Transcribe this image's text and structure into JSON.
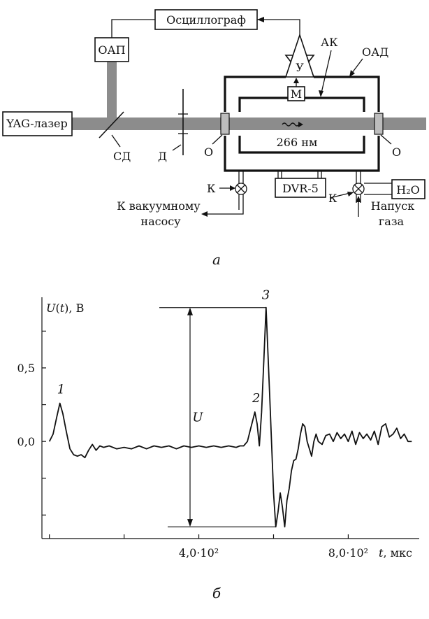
{
  "schematic": {
    "oscillograph": "Осциллограф",
    "oap": "ОАП",
    "laser": "YAG-лазер",
    "ak": "АК",
    "oad": "ОАД",
    "amplifier": "У",
    "mic": "М",
    "wavelength": "266 нм",
    "sd": "СД",
    "d": "Д",
    "o_left": "О",
    "o_right": "О",
    "k_left": "К",
    "k_right": "К",
    "dvr": "DVR-5",
    "water": "H₂O",
    "pump_line1": "К вакуумному",
    "pump_line2": "насосу",
    "gas_line1": "Напуск",
    "gas_line2": "газа",
    "caption": "а"
  },
  "graph": {
    "ylabel": "U(t), В",
    "xlabel": "t, мкс",
    "ytick_labels": [
      "0,5",
      "0,0"
    ],
    "xtick_labels": [
      "4,0·10²",
      "8,0·10²"
    ],
    "peak_labels": [
      "1",
      "2",
      "3"
    ],
    "amplitude_label": "U",
    "caption": "б"
  },
  "chart_data": {
    "type": "line",
    "title": "",
    "xlabel": "t, мкс",
    "ylabel": "U(t), В",
    "xlim": [
      -20,
      990
    ],
    "ylim": [
      -0.66,
      0.98
    ],
    "x_ticks": [
      0,
      200,
      400,
      600,
      800
    ],
    "x_tick_labels": {
      "400": "4,0·10²",
      "800": "8,0·10²"
    },
    "y_ticks": [
      -0.5,
      -0.25,
      0,
      0.25,
      0.5,
      0.75
    ],
    "y_tick_labels": {
      "0.5": "0,5",
      "0": "0,0"
    },
    "grid": false,
    "amplitude_range": [
      -0.58,
      0.91
    ],
    "series": [
      {
        "x": [
          0,
          10,
          20,
          28,
          36,
          45,
          55,
          65,
          75,
          85,
          95,
          105,
          115,
          125,
          135,
          145,
          160,
          180,
          200,
          220,
          240,
          260,
          280,
          300,
          320,
          340,
          360,
          380,
          400,
          420,
          440,
          460,
          480,
          500,
          510,
          520,
          530,
          540,
          550,
          556,
          562,
          568,
          574,
          580,
          590,
          600,
          606,
          612,
          618,
          624,
          630,
          636,
          642,
          648,
          654,
          660,
          666,
          672,
          678,
          684,
          690,
          696,
          702,
          708,
          714,
          720,
          730,
          740,
          750,
          760,
          770,
          780,
          790,
          800,
          810,
          820,
          830,
          840,
          850,
          860,
          870,
          880,
          890,
          900,
          910,
          920,
          930,
          940,
          950,
          960,
          970
        ],
        "y": [
          0.0,
          0.05,
          0.17,
          0.26,
          0.19,
          0.07,
          -0.05,
          -0.09,
          -0.1,
          -0.09,
          -0.11,
          -0.06,
          -0.02,
          -0.06,
          -0.03,
          -0.04,
          -0.03,
          -0.05,
          -0.04,
          -0.05,
          -0.03,
          -0.05,
          -0.03,
          -0.04,
          -0.03,
          -0.05,
          -0.03,
          -0.04,
          -0.03,
          -0.04,
          -0.03,
          -0.04,
          -0.03,
          -0.04,
          -0.03,
          -0.03,
          0.0,
          0.1,
          0.2,
          0.12,
          -0.03,
          0.2,
          0.55,
          0.91,
          0.3,
          -0.35,
          -0.58,
          -0.48,
          -0.35,
          -0.45,
          -0.58,
          -0.4,
          -0.32,
          -0.2,
          -0.13,
          -0.12,
          -0.05,
          0.05,
          0.12,
          0.1,
          0.0,
          -0.05,
          -0.1,
          0.0,
          0.05,
          0.0,
          -0.02,
          0.04,
          0.05,
          0.0,
          0.06,
          0.02,
          0.05,
          0.0,
          0.07,
          -0.02,
          0.06,
          0.02,
          0.05,
          0.01,
          0.07,
          -0.02,
          0.1,
          0.12,
          0.03,
          0.05,
          0.09,
          0.02,
          0.05,
          0.0,
          0.0
        ]
      }
    ],
    "annotations": [
      {
        "text": "1",
        "x": 28,
        "y": 0.26
      },
      {
        "text": "2",
        "x": 556,
        "y": 0.2
      },
      {
        "text": "3",
        "x": 580,
        "y": 0.91
      }
    ]
  }
}
